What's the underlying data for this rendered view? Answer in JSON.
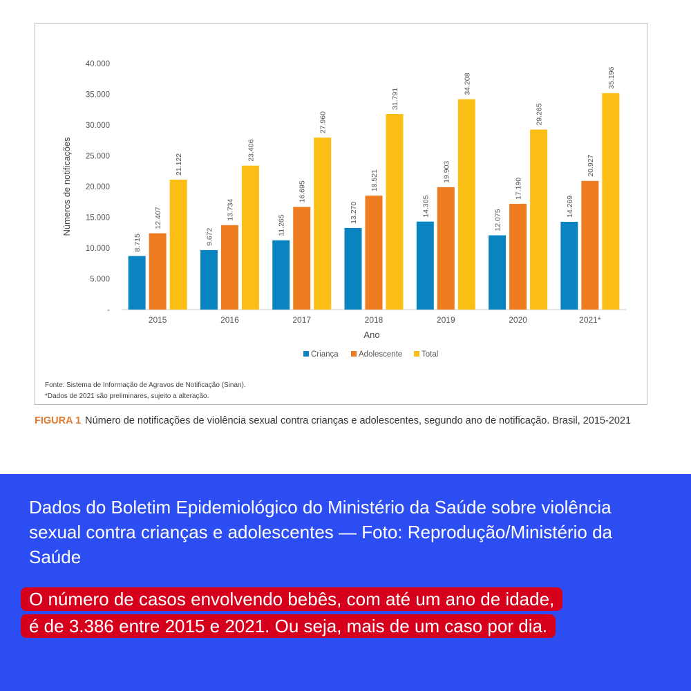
{
  "chart_data": {
    "type": "bar",
    "categories": [
      "2015",
      "2016",
      "2017",
      "2018",
      "2019",
      "2020",
      "2021*"
    ],
    "series": [
      {
        "name": "Criança",
        "color": "#0a84c1",
        "values": [
          8715,
          9672,
          11265,
          13270,
          14305,
          12075,
          14269
        ],
        "labels": [
          "8.715",
          "9.672",
          "11.265",
          "13.270",
          "14.305",
          "12.075",
          "14.269"
        ]
      },
      {
        "name": "Adolescente",
        "color": "#ee7d22",
        "values": [
          12407,
          13734,
          16695,
          18521,
          19903,
          17190,
          20927
        ],
        "labels": [
          "12.407",
          "13.734",
          "16.695",
          "18.521",
          "19.903",
          "17.190",
          "20.927"
        ]
      },
      {
        "name": "Total",
        "color": "#fbbe14",
        "values": [
          21122,
          23406,
          27960,
          31791,
          34208,
          29265,
          35196
        ],
        "labels": [
          "21.122",
          "23.406",
          "27.960",
          "31.791",
          "34.208",
          "29.265",
          "35.196"
        ]
      }
    ],
    "ylim": [
      0,
      40000
    ],
    "yticks": [
      "-",
      "5.000",
      "10.000",
      "15.000",
      "20.000",
      "25.000",
      "30.000",
      "35.000",
      "40.000"
    ],
    "xlabel": "Ano",
    "ylabel": "Números de notificações",
    "legend_position": "bottom-center",
    "grid": false
  },
  "source_note": {
    "line1": "Fonte: Sistema de Informação de Agravos de Notificação (Sinan).",
    "line2": "*Dados de 2021 são preliminares, sujeito a alteração."
  },
  "caption": {
    "label": "FIGURA 1",
    "text": "Número de notificações de violência sexual contra crianças e adolescentes, segundo ano de notificação. Brasil, 2015-2021"
  },
  "panel": {
    "background": "#2b4df2",
    "description": "Dados do Boletim Epidemiológico do Ministério da Saúde sobre violência sexual contra crianças e adolescentes — Foto: Reprodução/Ministério da Saúde",
    "highlight": "O número de casos envolvendo bebês, com até um ano de idade, é de 3.386 entre 2015 e 2021. Ou seja, mais de um caso por dia.",
    "highlight_color": "#d6001c"
  }
}
